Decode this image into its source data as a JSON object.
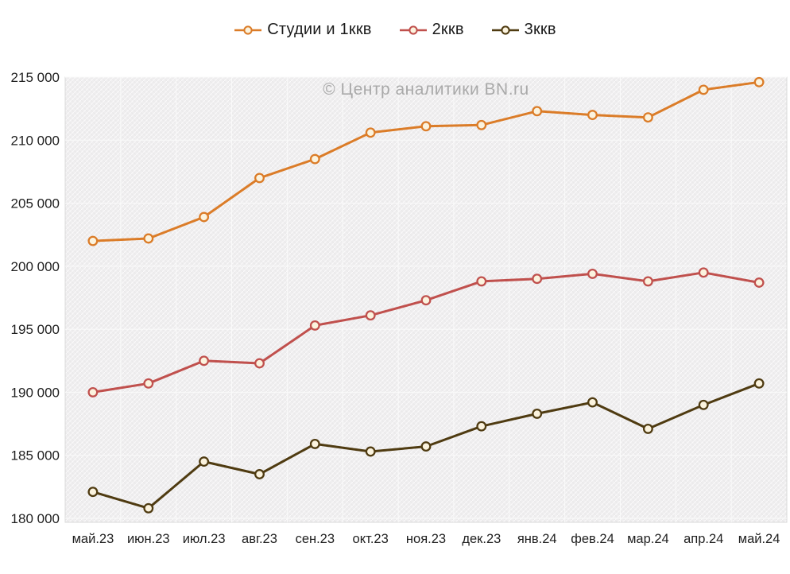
{
  "watermark": "© Центр аналитики BN.ru",
  "chart_data": {
    "type": "line",
    "title": "",
    "xlabel": "",
    "ylabel": "",
    "legend_position": "top",
    "grid": true,
    "ylim": [
      180000,
      215000
    ],
    "ytick_step": 5000,
    "yticks": [
      180000,
      185000,
      190000,
      195000,
      200000,
      205000,
      210000,
      215000
    ],
    "ytick_labels": [
      "180 000",
      "185 000",
      "190 000",
      "195 000",
      "200 000",
      "205 000",
      "210 000",
      "215 000"
    ],
    "categories": [
      "май.23",
      "июн.23",
      "июл.23",
      "авг.23",
      "сен.23",
      "окт.23",
      "ноя.23",
      "дек.23",
      "янв.24",
      "фев.24",
      "мар.24",
      "апр.24",
      "май.24"
    ],
    "series": [
      {
        "name": "Студии и 1ккв",
        "color": "#DB7C28",
        "values": [
          202000,
          202200,
          203900,
          207000,
          208500,
          210600,
          211100,
          211200,
          212300,
          212000,
          211800,
          214000,
          214600
        ]
      },
      {
        "name": "2ккв",
        "color": "#C0504D",
        "values": [
          190000,
          190700,
          192500,
          192300,
          195300,
          196100,
          197300,
          198800,
          199000,
          199400,
          198800,
          199500,
          198700
        ]
      },
      {
        "name": "3ккв",
        "color": "#4F3B11",
        "values": [
          182100,
          180800,
          184500,
          183500,
          185900,
          185300,
          185700,
          187300,
          188300,
          189200,
          187100,
          189000,
          190700
        ]
      }
    ],
    "marker_fill": "#FBF3DE",
    "panel_bg": "#EFEEEF",
    "gridline_color": "#FAFAFA",
    "panel_border_color": "#D9D9D9"
  }
}
